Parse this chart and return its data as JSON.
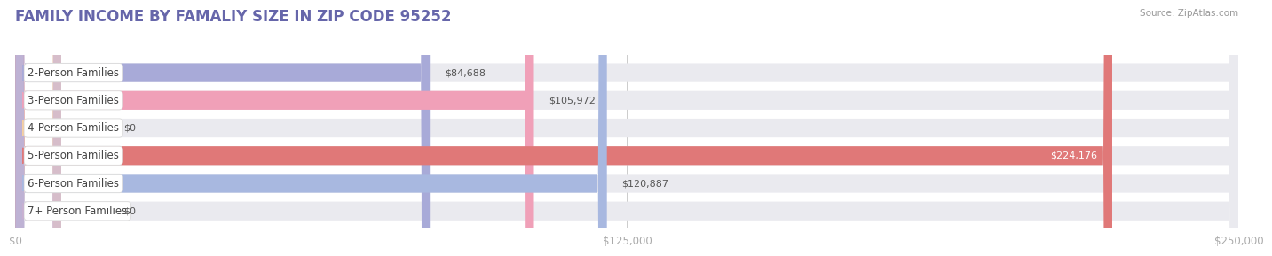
{
  "title": "FAMILY INCOME BY FAMALIY SIZE IN ZIP CODE 95252",
  "source": "Source: ZipAtlas.com",
  "categories": [
    "2-Person Families",
    "3-Person Families",
    "4-Person Families",
    "5-Person Families",
    "6-Person Families",
    "7+ Person Families"
  ],
  "values": [
    84688,
    105972,
    0,
    224176,
    120887,
    0
  ],
  "bar_colors": [
    "#a8aad8",
    "#f0a0b8",
    "#f5cfa0",
    "#e07878",
    "#a8b8e0",
    "#c8b0d0"
  ],
  "label_colors": [
    "#333333",
    "#333333",
    "#333333",
    "#ffffff",
    "#333333",
    "#333333"
  ],
  "bar_bg_color": "#eaeaef",
  "xlim": [
    0,
    250000
  ],
  "xticks": [
    0,
    125000,
    250000
  ],
  "xtick_labels": [
    "$0",
    "$125,000",
    "$250,000"
  ],
  "value_labels": [
    "$84,688",
    "$105,972",
    "$0",
    "$224,176",
    "$120,887",
    "$0"
  ],
  "background_color": "#ffffff",
  "bar_height": 0.68,
  "title_fontsize": 12,
  "label_fontsize": 8.5,
  "value_fontsize": 8,
  "tick_fontsize": 8.5
}
